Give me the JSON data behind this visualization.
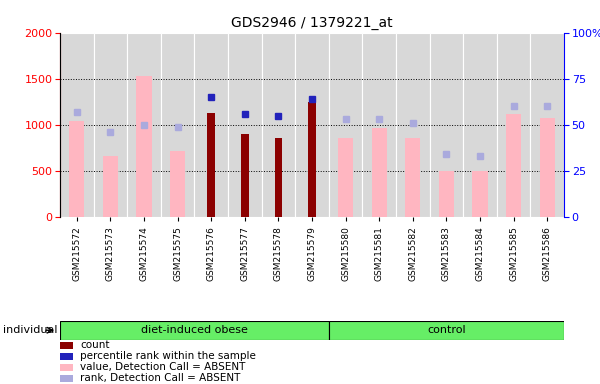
{
  "title": "GDS2946 / 1379221_at",
  "samples": [
    "GSM215572",
    "GSM215573",
    "GSM215574",
    "GSM215575",
    "GSM215576",
    "GSM215577",
    "GSM215578",
    "GSM215579",
    "GSM215580",
    "GSM215581",
    "GSM215582",
    "GSM215583",
    "GSM215584",
    "GSM215585",
    "GSM215586"
  ],
  "group_labels": [
    "diet-induced obese",
    "control"
  ],
  "group_ranges": [
    [
      0,
      7
    ],
    [
      8,
      14
    ]
  ],
  "count": {
    "GSM215576": 1130,
    "GSM215577": 900,
    "GSM215578": 860,
    "GSM215579": 1250
  },
  "value_absent": {
    "GSM215572": 1040,
    "GSM215573": 660,
    "GSM215574": 1530,
    "GSM215575": 720,
    "GSM215580": 860,
    "GSM215581": 960,
    "GSM215582": 860,
    "GSM215583": 500,
    "GSM215584": 500,
    "GSM215585": 1115,
    "GSM215586": 1070
  },
  "rank_absent": {
    "GSM215572": 57,
    "GSM215573": 46,
    "GSM215574": 50,
    "GSM215575": 49,
    "GSM215580": 53,
    "GSM215581": 53,
    "GSM215582": 51,
    "GSM215583": 34,
    "GSM215584": 33,
    "GSM215585": 60,
    "GSM215586": 60
  },
  "percentile_rank": {
    "GSM215576": 65,
    "GSM215577": 56,
    "GSM215578": 55,
    "GSM215579": 64
  },
  "ylim_left": [
    0,
    2000
  ],
  "ylim_right": [
    0,
    100
  ],
  "yticks_left": [
    0,
    500,
    1000,
    1500,
    2000
  ],
  "yticks_right": [
    0,
    25,
    50,
    75,
    100
  ],
  "bar_color_count": "#8B0000",
  "bar_color_absent": "#FFB6C1",
  "dot_color_rank": "#2222BB",
  "dot_color_rank_absent": "#AAAADD",
  "cell_bg_color": "#D8D8D8",
  "group_color": "#66EE66",
  "figsize": [
    6.0,
    3.84
  ],
  "dpi": 100
}
